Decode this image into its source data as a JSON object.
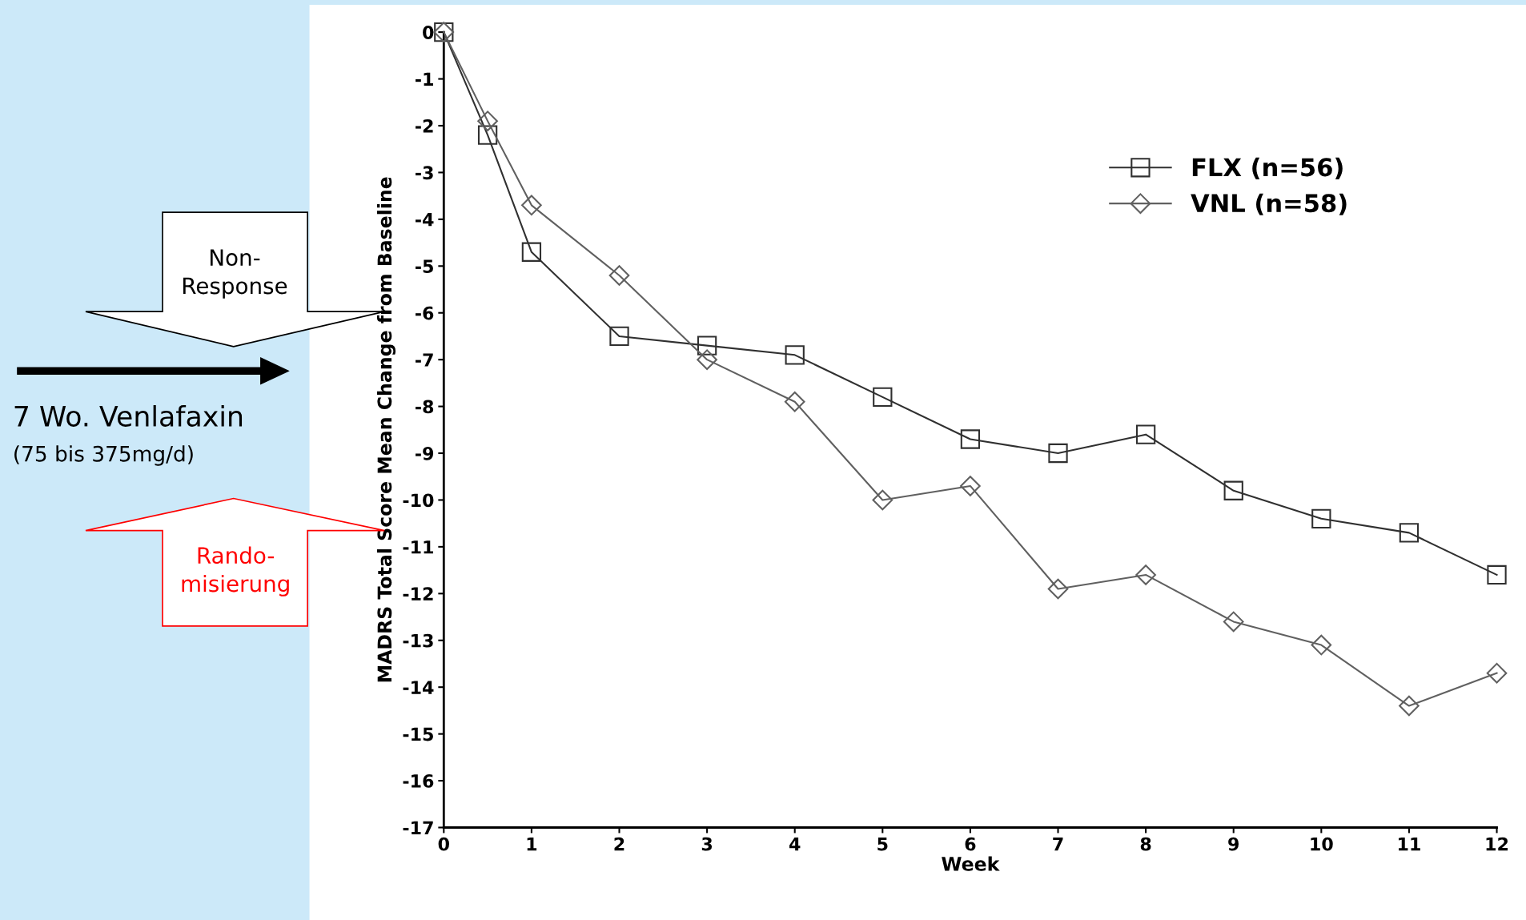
{
  "chart_data": {
    "type": "line",
    "xlabel": "Week",
    "ylabel": "MADRS Total Score Mean Change from Baseline",
    "x": [
      0,
      0.5,
      1,
      2,
      3,
      4,
      5,
      6,
      7,
      8,
      9,
      10,
      11,
      12
    ],
    "series": [
      {
        "name": "FLX (n=56)",
        "color": "#303030",
        "marker": "square",
        "values": [
          0,
          -2.2,
          -4.7,
          -6.5,
          -6.7,
          -6.9,
          -7.8,
          -8.7,
          -9.0,
          -8.6,
          -9.8,
          -10.4,
          -10.7,
          -11.6
        ]
      },
      {
        "name": "VNL (n=58)",
        "color": "#606060",
        "marker": "diamond",
        "values": [
          0,
          -1.9,
          -3.7,
          -5.2,
          -7.0,
          -7.9,
          -10.0,
          -9.7,
          -11.9,
          -11.6,
          -12.6,
          -13.1,
          -14.4,
          -13.7
        ]
      }
    ],
    "xlim": [
      0,
      12
    ],
    "xticks": [
      0,
      1,
      2,
      3,
      4,
      5,
      6,
      7,
      8,
      9,
      10,
      11,
      12
    ],
    "ylim": [
      -17,
      0
    ],
    "yticks": [
      0,
      -1,
      -2,
      -3,
      -4,
      -5,
      -6,
      -7,
      -8,
      -9,
      -10,
      -11,
      -12,
      -13,
      -14,
      -15,
      -16,
      -17
    ],
    "grid": false,
    "legend": "top right",
    "line_style": "solid",
    "annotations": [
      "Non-\nResponse",
      "Rando-\nmisierung",
      "7 Wo. Venlafaxin",
      "(75 bis 375mg/d)"
    ]
  }
}
